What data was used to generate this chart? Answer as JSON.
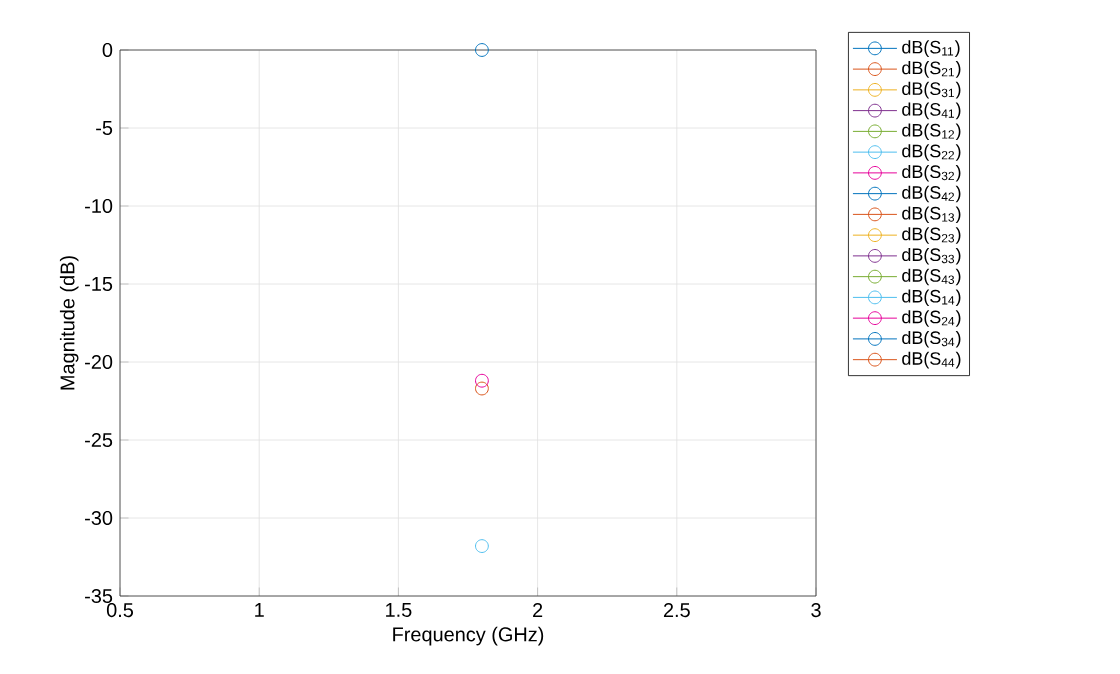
{
  "chart_data": {
    "type": "scatter",
    "xlabel": "Frequency (GHz)",
    "ylabel": "Magnitude (dB)",
    "x": [
      1.8
    ],
    "xlim": [
      0.5,
      3
    ],
    "ylim": [
      -35,
      0
    ],
    "xticks": [
      0.5,
      1,
      1.5,
      2,
      2.5,
      3
    ],
    "yticks": [
      -35,
      -30,
      -25,
      -20,
      -15,
      -10,
      -5,
      0
    ],
    "grid": true,
    "legend": "right",
    "marker": "circle",
    "line_style": "solid",
    "series": [
      {
        "name": "dB(S$_{11}$)",
        "color": "#0072bd",
        "values": [
          0
        ]
      },
      {
        "name": "dB(S$_{21}$)",
        "color": "#d95319",
        "values": [
          -21.7
        ]
      },
      {
        "name": "dB(S$_{31}$)",
        "color": "#edb120",
        "values": [
          null
        ]
      },
      {
        "name": "dB(S$_{41}$)",
        "color": "#7e2f8e",
        "values": [
          null
        ]
      },
      {
        "name": "dB(S$_{12}$)",
        "color": "#77ac30",
        "values": [
          null
        ]
      },
      {
        "name": "dB(S$_{22}$)",
        "color": "#4dbeee",
        "values": [
          -31.8
        ]
      },
      {
        "name": "dB(S$_{32}$)",
        "color": "#e6009a",
        "values": [
          -21.2
        ]
      },
      {
        "name": "dB(S$_{42}$)",
        "color": "#0072bd",
        "values": [
          null
        ]
      },
      {
        "name": "dB(S$_{13}$)",
        "color": "#d95319",
        "values": [
          null
        ]
      },
      {
        "name": "dB(S$_{23}$)",
        "color": "#edb120",
        "values": [
          null
        ]
      },
      {
        "name": "dB(S$_{33}$)",
        "color": "#7e2f8e",
        "values": [
          null
        ]
      },
      {
        "name": "dB(S$_{43}$)",
        "color": "#77ac30",
        "values": [
          null
        ]
      },
      {
        "name": "dB(S$_{14}$)",
        "color": "#4dbeee",
        "values": [
          null
        ]
      },
      {
        "name": "dB(S$_{24}$)",
        "color": "#e6009a",
        "values": [
          null
        ]
      },
      {
        "name": "dB(S$_{34}$)",
        "color": "#0072bd",
        "values": [
          null
        ]
      },
      {
        "name": "dB(S$_{44}$)",
        "color": "#d95319",
        "values": [
          null
        ]
      }
    ]
  }
}
